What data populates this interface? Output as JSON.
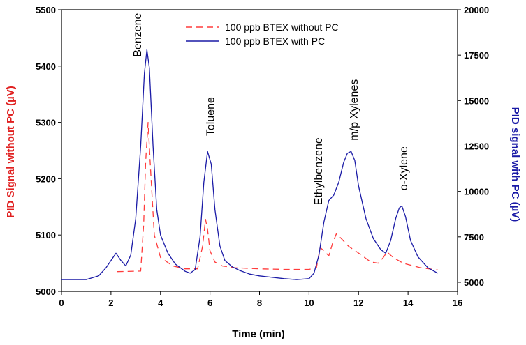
{
  "chart_data": {
    "type": "line",
    "xlabel": "Time (min)",
    "ylabel_left": "PID Signal without PC (µV)",
    "ylabel_right": "PID signal with PC (µV)",
    "xlim": [
      0,
      16
    ],
    "ylim_left": [
      5000,
      5500
    ],
    "ylim_right": [
      4500,
      20000
    ],
    "x_ticks": [
      0,
      2,
      4,
      6,
      8,
      10,
      12,
      14,
      16
    ],
    "y_left_ticks": [
      5000,
      5100,
      5200,
      5300,
      5400,
      5500
    ],
    "y_right_ticks": [
      5000,
      7500,
      10000,
      12500,
      15000,
      17500,
      20000
    ],
    "grid": false,
    "legend_position": "top-center",
    "colors": {
      "without_pc": "#ff3b3b",
      "with_pc": "#1a1aa6",
      "left_axis_title": "#e02020",
      "right_axis_title": "#1a1aa6"
    },
    "series": [
      {
        "name": "100 ppb BTEX without PC",
        "axis": "left",
        "style": "dashed",
        "x": [
          2.25,
          3.2,
          3.32,
          3.4,
          3.5,
          3.6,
          3.75,
          4.0,
          4.5,
          5.0,
          5.5,
          5.7,
          5.82,
          5.9,
          6.0,
          6.2,
          6.5,
          7.0,
          8.0,
          9.0,
          10.0,
          10.3,
          10.45,
          10.6,
          10.8,
          10.95,
          11.1,
          11.3,
          11.6,
          12.0,
          12.5,
          12.8,
          13.0,
          13.15,
          13.4,
          13.8,
          14.5,
          15.2
        ],
        "y": [
          5035,
          5036,
          5120,
          5230,
          5300,
          5215,
          5100,
          5060,
          5045,
          5040,
          5040,
          5080,
          5128,
          5110,
          5072,
          5052,
          5045,
          5042,
          5040,
          5039,
          5039,
          5042,
          5078,
          5072,
          5063,
          5085,
          5102,
          5094,
          5080,
          5068,
          5052,
          5050,
          5060,
          5070,
          5060,
          5050,
          5042,
          5038
        ]
      },
      {
        "name": "100 ppb BTEX with PC",
        "axis": "right",
        "style": "solid",
        "x": [
          0,
          1.0,
          1.5,
          1.8,
          2.0,
          2.2,
          2.4,
          2.6,
          2.8,
          3.0,
          3.2,
          3.35,
          3.45,
          3.55,
          3.7,
          3.85,
          4.0,
          4.3,
          4.6,
          5.0,
          5.2,
          5.4,
          5.6,
          5.75,
          5.9,
          6.05,
          6.2,
          6.4,
          6.6,
          6.9,
          7.2,
          7.6,
          8.0,
          9.0,
          9.5,
          10.0,
          10.2,
          10.4,
          10.6,
          10.8,
          11.0,
          11.2,
          11.4,
          11.55,
          11.7,
          11.85,
          12.0,
          12.3,
          12.6,
          12.9,
          13.1,
          13.3,
          13.5,
          13.65,
          13.75,
          13.9,
          14.1,
          14.4,
          14.8,
          15.2
        ],
        "y": [
          5150,
          5150,
          5350,
          5800,
          6200,
          6600,
          6200,
          5900,
          6500,
          8500,
          12500,
          16500,
          17800,
          16800,
          12500,
          9000,
          7600,
          6600,
          6000,
          5600,
          5500,
          5700,
          7500,
          10500,
          12200,
          11500,
          9000,
          7000,
          6200,
          5850,
          5650,
          5450,
          5350,
          5200,
          5150,
          5200,
          5500,
          6500,
          8300,
          9500,
          9800,
          10500,
          11600,
          12100,
          12200,
          11700,
          10300,
          8500,
          7400,
          6800,
          6600,
          7300,
          8500,
          9100,
          9200,
          8600,
          7300,
          6400,
          5800,
          5500
        ]
      }
    ],
    "legend": [
      {
        "label": "100 ppb BTEX without PC",
        "style": "dashed"
      },
      {
        "label": "100 ppb BTEX with PC",
        "style": "solid"
      }
    ],
    "annotations": [
      {
        "text": "Benzene",
        "x": 3.05,
        "y_right": 17400
      },
      {
        "text": "Toluene",
        "x": 6.0,
        "y_right": 13050
      },
      {
        "text": "Ethylbenzene",
        "x": 10.35,
        "y_right": 9250
      },
      {
        "text": "m/p Xylenes",
        "x": 11.8,
        "y_right": 12800
      },
      {
        "text": "o-Xylene",
        "x": 13.8,
        "y_right": 10050
      }
    ]
  }
}
